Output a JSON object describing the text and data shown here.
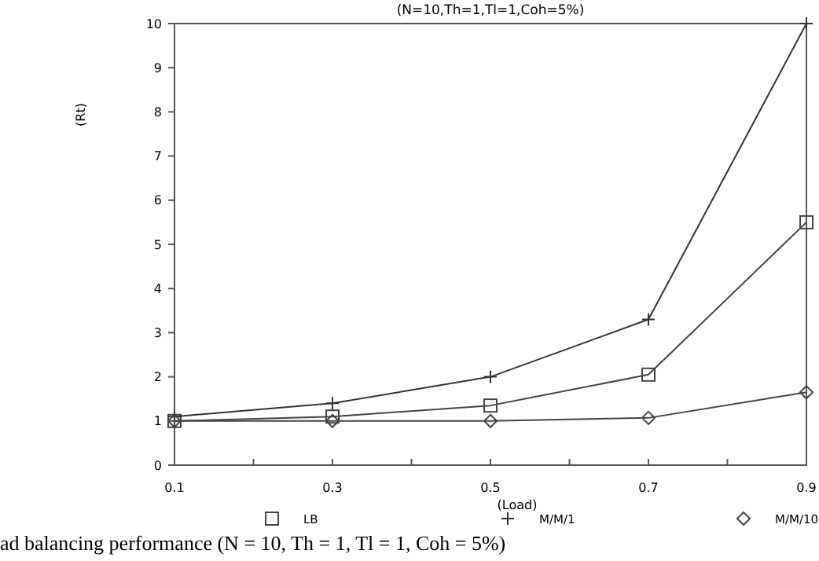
{
  "chart_data": {
    "type": "line",
    "title": "(N=10,Th=1,Tl=1,Coh=5%)",
    "xlabel": "(Load)",
    "ylabel": "(Rt)",
    "x": [
      0.1,
      0.3,
      0.5,
      0.7,
      0.9
    ],
    "series": [
      {
        "name": "LB",
        "color": "#444444",
        "marker": "square",
        "values": [
          1.0,
          1.1,
          1.35,
          2.05,
          5.5
        ]
      },
      {
        "name": "M/M/1",
        "color": "#333333",
        "marker": "cross",
        "values": [
          1.1,
          1.4,
          2.0,
          3.3,
          10
        ]
      },
      {
        "name": "M/M/10",
        "color": "#444444",
        "marker": "diamond",
        "values": [
          1.0,
          1.0,
          1.0,
          1.07,
          1.65
        ]
      }
    ],
    "xlim": [
      0.1,
      0.9
    ],
    "ylim": [
      0,
      10
    ],
    "xticks": [
      0.1,
      {
        "value": 0.2,
        "label": null
      },
      0.3,
      {
        "value": 0.4,
        "label": null
      },
      0.5,
      {
        "value": 0.6,
        "label": null
      },
      0.7,
      {
        "value": 0.8,
        "label": null
      },
      0.9
    ],
    "yticks": [
      0,
      1,
      2,
      3,
      4,
      5,
      6,
      7,
      8,
      9,
      10
    ],
    "grid": false,
    "legend": "bottom",
    "line_style": "solid",
    "annotations": [
      "ad balancing performance (N = 10, Th = 1, Tl = 1, Coh = 5%)"
    ]
  }
}
